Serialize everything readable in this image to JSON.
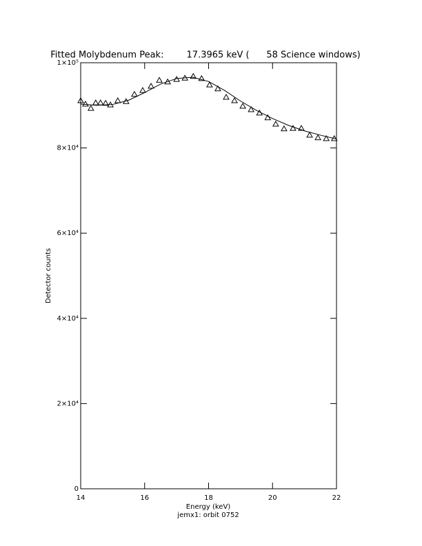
{
  "chart_data": {
    "type": "scatter",
    "title": "Fitted Molybdenum Peak:        17.3965 keV (      58 Science windows)",
    "x_label": "Energy (keV)",
    "y_label": "Detector counts",
    "subtitle": "jemx1: orbit 0752",
    "xlim": [
      14,
      22
    ],
    "xticks": [
      14,
      16,
      18,
      20,
      22
    ],
    "ylim": [
      0,
      100000
    ],
    "yticks": [
      0,
      {
        "value": 20000,
        "label": "2×10⁴"
      },
      {
        "value": 40000,
        "label": "4×10⁴"
      },
      {
        "value": 60000,
        "label": "6×10⁴"
      },
      {
        "value": 80000,
        "label": "8×10⁴"
      },
      {
        "value": 100000,
        "label": "1×10⁵"
      }
    ],
    "series": [
      {
        "style": "triangle",
        "color": "#000000",
        "x": [
          14.0,
          14.15,
          14.32,
          14.47,
          14.62,
          14.78,
          14.93,
          15.16,
          15.42,
          15.68,
          15.94,
          16.2,
          16.46,
          16.72,
          17.0,
          17.26,
          17.52,
          17.78,
          18.03,
          18.29,
          18.55,
          18.81,
          19.07,
          19.33,
          19.59,
          19.85,
          20.1,
          20.36,
          20.64,
          20.9,
          21.16,
          21.42,
          21.68,
          21.93
        ],
        "values": [
          91100,
          90300,
          89300,
          90600,
          90600,
          90500,
          90100,
          91100,
          90900,
          92600,
          93500,
          94500,
          95900,
          95500,
          96100,
          96400,
          96800,
          96300,
          94800,
          93900,
          91900,
          91100,
          89800,
          89000,
          88200,
          87100,
          85600,
          84500,
          84600,
          84600,
          83000,
          82400,
          82200,
          82200
        ]
      },
      {
        "style": "line",
        "color": "#000000",
        "x": [
          14,
          14.5,
          15,
          15.5,
          16,
          16.5,
          17,
          17.5,
          18,
          18.5,
          19,
          19.5,
          20,
          20.5,
          21,
          21.5,
          22
        ],
        "values": [
          90300,
          90000,
          90200,
          91200,
          93000,
          95000,
          96300,
          96600,
          95600,
          93500,
          91000,
          88800,
          86900,
          85300,
          84000,
          83000,
          82100
        ]
      }
    ]
  }
}
